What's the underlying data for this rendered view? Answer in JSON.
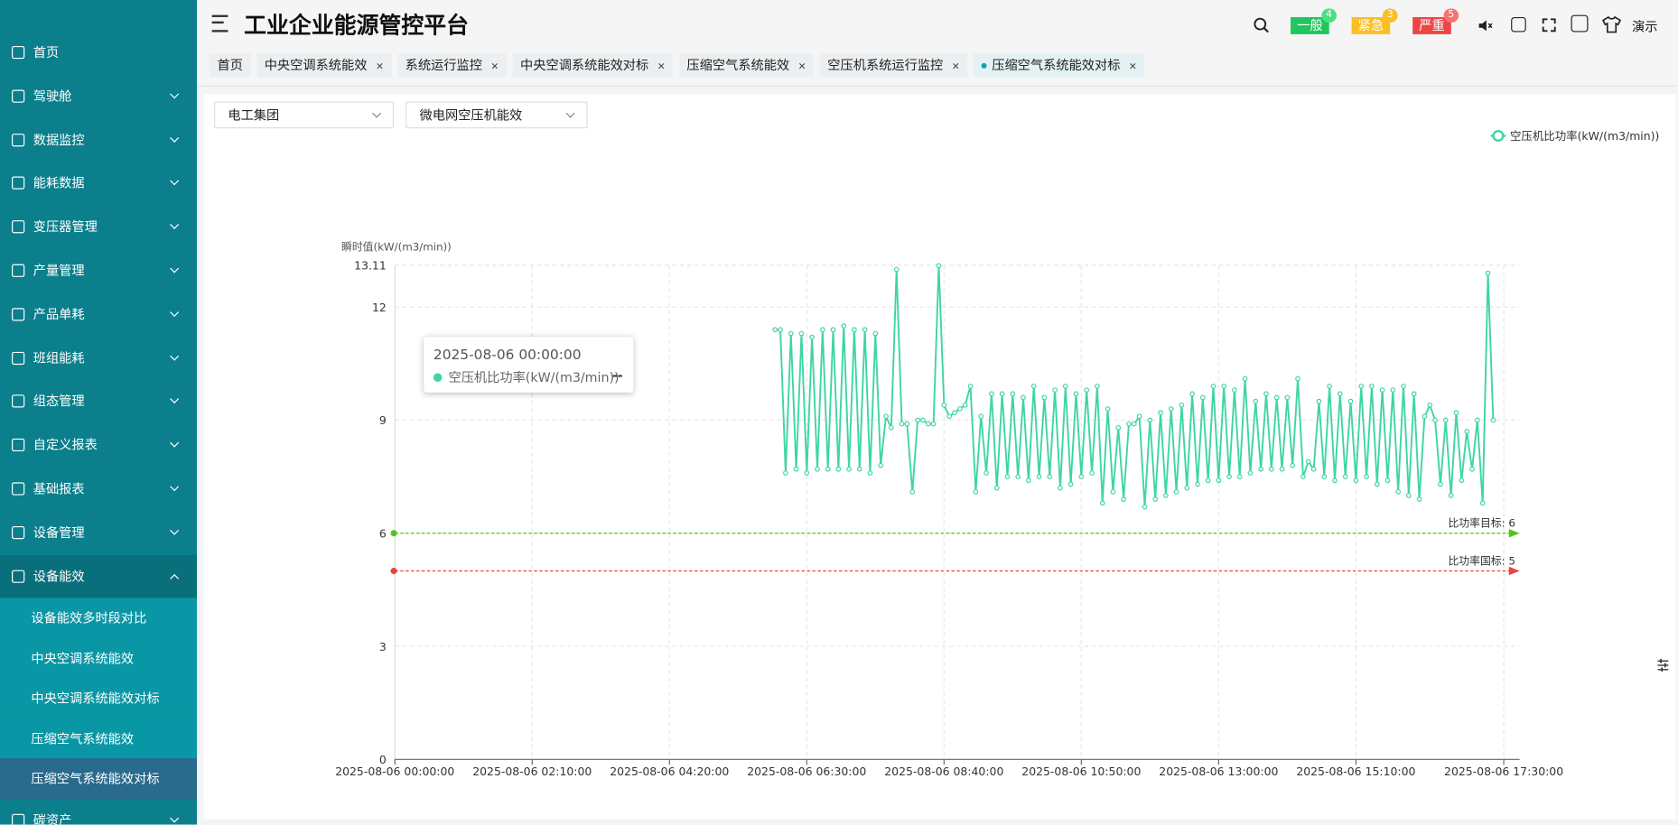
{
  "header": {
    "title": "工业企业能源管控平台",
    "badges": [
      {
        "label": "一般",
        "count": "4"
      },
      {
        "label": "紧急",
        "count": "3"
      },
      {
        "label": "严重",
        "count": "5"
      }
    ],
    "user": "演示"
  },
  "sidebar": {
    "items": [
      "首页",
      "驾驶舱",
      "数据监控",
      "能耗数据",
      "变压器管理",
      "产量管理",
      "产品单耗",
      "班组能耗",
      "组态管理",
      "自定义报表",
      "基础报表",
      "设备管理",
      "设备能效"
    ],
    "subitems": [
      "设备能效多时段对比",
      "中央空调系统能效",
      "中央空调系统能效对标",
      "压缩空气系统能效",
      "压缩空气系统能效对标"
    ],
    "last": "碳资产"
  },
  "tabs": [
    "首页",
    "中央空调系统能效",
    "系统运行监控",
    "中央空调系统能效对标",
    "压缩空气系统能效",
    "空压机系统运行监控",
    "压缩空气系统能效对标"
  ],
  "filters": [
    "电工集团",
    "微电网空压机能效"
  ],
  "tooltip": {
    "time": "2025-08-06 00:00:00",
    "series": "空压机比功率(kW/(m3/min))",
    "value": "--"
  },
  "chart_data": {
    "type": "line",
    "y_axis_label": "瞬时值(kW/(m3/min))",
    "ylim": [
      0,
      13.11
    ],
    "yticks": [
      0,
      3,
      6,
      9,
      12,
      13.11
    ],
    "grid": true,
    "legend": "top-right",
    "xlim": [
      "2025-08-06 00:00:00",
      "2025-08-06 17:45:00"
    ],
    "xticks": [
      "2025-08-06 00:00:00",
      "2025-08-06 02:10:00",
      "2025-08-06 04:20:00",
      "2025-08-06 06:30:00",
      "2025-08-06 08:40:00",
      "2025-08-06 10:50:00",
      "2025-08-06 13:00:00",
      "2025-08-06 15:10:00",
      "2025-08-06 17:30:00"
    ],
    "mark_lines": [
      {
        "label": "比功率目标: 6",
        "value": 6,
        "color": "#52c41a"
      },
      {
        "label": "比功率国标: 5",
        "value": 5,
        "color": "#e8453c"
      }
    ],
    "x": [
      "2025-08-06 06:00:00",
      "2025-08-06 06:05:00",
      "2025-08-06 06:10:00",
      "2025-08-06 06:15:00",
      "2025-08-06 06:20:00",
      "2025-08-06 06:25:00",
      "2025-08-06 06:30:00",
      "2025-08-06 06:35:00",
      "2025-08-06 06:40:00",
      "2025-08-06 06:45:00",
      "2025-08-06 06:50:00",
      "2025-08-06 06:55:00",
      "2025-08-06 07:00:00",
      "2025-08-06 07:05:00",
      "2025-08-06 07:10:00",
      "2025-08-06 07:15:00",
      "2025-08-06 07:20:00",
      "2025-08-06 07:25:00",
      "2025-08-06 07:30:00",
      "2025-08-06 07:35:00",
      "2025-08-06 07:40:00",
      "2025-08-06 07:45:00",
      "2025-08-06 07:50:00",
      "2025-08-06 07:55:00",
      "2025-08-06 08:00:00",
      "2025-08-06 08:05:00",
      "2025-08-06 08:10:00",
      "2025-08-06 08:15:00",
      "2025-08-06 08:20:00",
      "2025-08-06 08:25:00",
      "2025-08-06 08:30:00",
      "2025-08-06 08:35:00",
      "2025-08-06 08:40:00",
      "2025-08-06 08:45:00",
      "2025-08-06 08:50:00",
      "2025-08-06 08:55:00",
      "2025-08-06 09:00:00",
      "2025-08-06 09:05:00",
      "2025-08-06 09:10:00",
      "2025-08-06 09:15:00",
      "2025-08-06 09:20:00",
      "2025-08-06 09:25:00",
      "2025-08-06 09:30:00",
      "2025-08-06 09:35:00",
      "2025-08-06 09:40:00",
      "2025-08-06 09:45:00",
      "2025-08-06 09:50:00",
      "2025-08-06 09:55:00",
      "2025-08-06 10:00:00",
      "2025-08-06 10:05:00",
      "2025-08-06 10:10:00",
      "2025-08-06 10:15:00",
      "2025-08-06 10:20:00",
      "2025-08-06 10:25:00",
      "2025-08-06 10:30:00",
      "2025-08-06 10:35:00",
      "2025-08-06 10:40:00",
      "2025-08-06 10:45:00",
      "2025-08-06 10:50:00",
      "2025-08-06 10:55:00",
      "2025-08-06 11:00:00",
      "2025-08-06 11:05:00",
      "2025-08-06 11:10:00",
      "2025-08-06 11:15:00",
      "2025-08-06 11:20:00",
      "2025-08-06 11:25:00",
      "2025-08-06 11:30:00",
      "2025-08-06 11:35:00",
      "2025-08-06 11:40:00",
      "2025-08-06 11:45:00",
      "2025-08-06 11:50:00",
      "2025-08-06 11:55:00",
      "2025-08-06 12:00:00",
      "2025-08-06 12:05:00",
      "2025-08-06 12:10:00",
      "2025-08-06 12:15:00",
      "2025-08-06 12:20:00",
      "2025-08-06 12:25:00",
      "2025-08-06 12:30:00",
      "2025-08-06 12:35:00",
      "2025-08-06 12:40:00",
      "2025-08-06 12:45:00",
      "2025-08-06 12:50:00",
      "2025-08-06 12:55:00",
      "2025-08-06 13:00:00",
      "2025-08-06 13:05:00",
      "2025-08-06 13:10:00",
      "2025-08-06 13:15:00",
      "2025-08-06 13:20:00",
      "2025-08-06 13:25:00",
      "2025-08-06 13:30:00",
      "2025-08-06 13:35:00",
      "2025-08-06 13:40:00",
      "2025-08-06 13:45:00",
      "2025-08-06 13:50:00",
      "2025-08-06 13:55:00",
      "2025-08-06 14:00:00",
      "2025-08-06 14:05:00",
      "2025-08-06 14:10:00",
      "2025-08-06 14:15:00",
      "2025-08-06 14:20:00",
      "2025-08-06 14:25:00",
      "2025-08-06 14:30:00",
      "2025-08-06 14:35:00",
      "2025-08-06 14:40:00",
      "2025-08-06 14:45:00",
      "2025-08-06 14:50:00",
      "2025-08-06 14:55:00",
      "2025-08-06 15:00:00",
      "2025-08-06 15:05:00",
      "2025-08-06 15:10:00",
      "2025-08-06 15:15:00",
      "2025-08-06 15:20:00",
      "2025-08-06 15:25:00",
      "2025-08-06 15:30:00",
      "2025-08-06 15:35:00",
      "2025-08-06 15:40:00",
      "2025-08-06 15:45:00",
      "2025-08-06 15:50:00",
      "2025-08-06 15:55:00",
      "2025-08-06 16:00:00",
      "2025-08-06 16:05:00",
      "2025-08-06 16:10:00",
      "2025-08-06 16:15:00",
      "2025-08-06 16:20:00",
      "2025-08-06 16:25:00",
      "2025-08-06 16:30:00",
      "2025-08-06 16:35:00",
      "2025-08-06 16:40:00",
      "2025-08-06 16:45:00",
      "2025-08-06 16:50:00",
      "2025-08-06 16:55:00",
      "2025-08-06 17:00:00",
      "2025-08-06 17:05:00",
      "2025-08-06 17:10:00",
      "2025-08-06 17:15:00",
      "2025-08-06 17:20:00"
    ],
    "series": [
      {
        "name": "空压机比功率(kW/(m3/min))",
        "color": "#3ed6a0",
        "values": [
          11.4,
          11.4,
          7.6,
          11.3,
          7.7,
          11.3,
          7.6,
          11.2,
          7.7,
          11.4,
          7.7,
          11.4,
          7.7,
          11.5,
          7.7,
          11.4,
          7.7,
          11.4,
          7.6,
          11.3,
          7.8,
          9.1,
          8.8,
          13.0,
          8.9,
          8.9,
          7.1,
          9.0,
          9.0,
          8.9,
          8.9,
          13.1,
          9.4,
          9.1,
          9.2,
          9.3,
          9.4,
          9.9,
          7.1,
          9.1,
          7.6,
          9.7,
          7.2,
          9.7,
          7.5,
          9.7,
          7.5,
          9.6,
          7.4,
          9.9,
          7.5,
          9.6,
          7.5,
          9.8,
          7.2,
          9.9,
          7.3,
          9.7,
          7.5,
          9.8,
          7.6,
          9.9,
          6.8,
          9.3,
          7.1,
          8.8,
          6.9,
          8.9,
          8.9,
          9.1,
          6.7,
          9.0,
          6.9,
          9.2,
          7.0,
          9.3,
          7.1,
          9.4,
          7.2,
          9.7,
          7.3,
          9.6,
          7.4,
          9.9,
          7.4,
          9.9,
          7.5,
          9.8,
          7.5,
          10.1,
          7.6,
          9.5,
          7.7,
          9.7,
          7.7,
          9.6,
          7.7,
          9.6,
          7.8,
          10.1,
          7.5,
          7.9,
          7.7,
          9.5,
          7.5,
          9.9,
          7.4,
          9.7,
          7.5,
          9.5,
          7.4,
          9.9,
          7.5,
          9.9,
          7.3,
          9.8,
          7.4,
          9.8,
          7.1,
          9.9,
          7.0,
          9.7,
          6.9,
          9.1,
          9.4,
          9.0,
          7.3,
          9.0,
          7.0,
          9.2,
          7.4,
          8.7,
          7.7,
          9.0,
          6.8,
          12.9,
          9.0
        ]
      }
    ]
  }
}
